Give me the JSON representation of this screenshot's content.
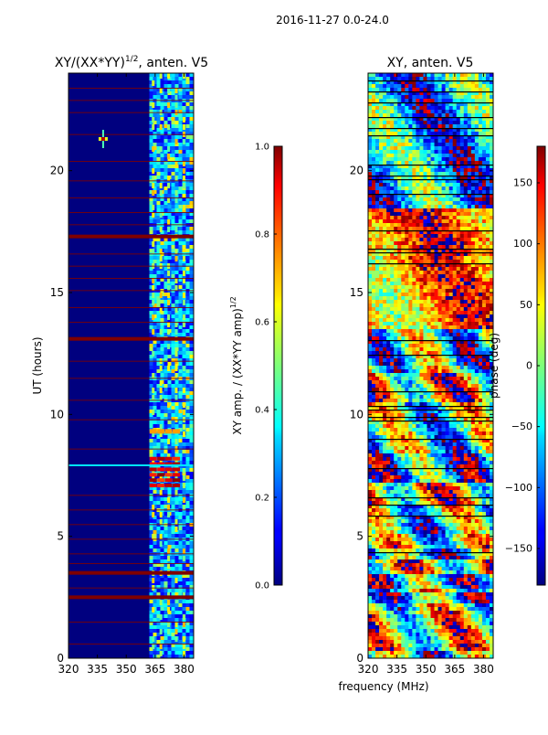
{
  "figure": {
    "suptitle": "2016-11-27 0.0-24.0",
    "xlabel": "frequency (MHz)"
  },
  "chart_data": [
    {
      "type": "heatmap",
      "title_main": "XY/(XX*YY)",
      "title_sup": "1/2",
      "title_tail": ", anten. V5",
      "xlabel": "",
      "ylabel": "UT (hours)",
      "xlim": [
        320,
        385
      ],
      "ylim": [
        0,
        24
      ],
      "xticks": [
        320,
        335,
        350,
        365,
        380
      ],
      "yticks": [
        0,
        5,
        10,
        15,
        20
      ],
      "colorbar": {
        "label_main": "XY amp. / (XX*YY amp)",
        "label_sup": "1/2",
        "range": [
          0.0,
          1.0
        ],
        "ticks": [
          "0.0",
          "0.2",
          "0.4",
          "0.6",
          "0.8",
          "1.0"
        ],
        "colormap": "jet"
      },
      "features": {
        "strong_band_start_mhz": 362,
        "columns_mhz": [
          364,
          368,
          372,
          376,
          380
        ],
        "full_amp_rows_ut": [
          17.3,
          13.1,
          3.5,
          2.5
        ],
        "high_amp_block_ut": [
          7.0,
          8.3
        ],
        "blob": {
          "freq_mhz": 338,
          "ut": 21.3
        }
      },
      "colors": {
        "background": "#00007f",
        "band": "#7f0000"
      }
    },
    {
      "type": "heatmap",
      "title": "XY, anten. V5",
      "xlabel": "",
      "ylabel": "",
      "xlim": [
        320,
        385
      ],
      "ylim": [
        0,
        24
      ],
      "xticks": [
        320,
        335,
        350,
        365,
        380
      ],
      "yticks": [
        0,
        5,
        10,
        15,
        20
      ],
      "colorbar": {
        "label": "phase (deg)",
        "range": [
          -180,
          180
        ],
        "ticks": [
          "−150",
          "−100",
          "−50",
          "0",
          "50",
          "100",
          "150"
        ],
        "tick_values": [
          -150,
          -100,
          -50,
          0,
          50,
          100,
          150
        ],
        "colormap": "jet"
      }
    }
  ]
}
